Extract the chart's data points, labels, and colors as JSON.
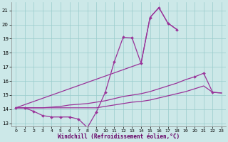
{
  "xlabel": "Windchill (Refroidissement éolien,°C)",
  "xlim": [
    -0.5,
    23.5
  ],
  "ylim": [
    12.8,
    21.6
  ],
  "yticks": [
    13,
    14,
    15,
    16,
    17,
    18,
    19,
    20,
    21
  ],
  "xticks": [
    0,
    1,
    2,
    3,
    4,
    5,
    6,
    7,
    8,
    9,
    10,
    11,
    12,
    13,
    14,
    15,
    16,
    17,
    18,
    19,
    20,
    21,
    22,
    23
  ],
  "background_color": "#cce8e8",
  "grid_color": "#99cccc",
  "line_color": "#993399",
  "line1_x": [
    0,
    1,
    2,
    3,
    4,
    5,
    6,
    7,
    8,
    9,
    10,
    11,
    12,
    13,
    14,
    15,
    16,
    17,
    18
  ],
  "line1_y": [
    14.1,
    14.1,
    13.85,
    13.55,
    13.45,
    13.45,
    13.45,
    13.3,
    12.7,
    13.8,
    15.2,
    17.35,
    19.1,
    19.05,
    17.25,
    20.5,
    21.2,
    20.1,
    19.65
  ],
  "line2_x": [
    0,
    9,
    10,
    11,
    12,
    13,
    14,
    15,
    16,
    17,
    18
  ],
  "line2_y": [
    14.1,
    13.8,
    15.2,
    17.35,
    19.1,
    19.05,
    17.25,
    20.5,
    21.2,
    20.1,
    19.65
  ],
  "line3_x": [
    0,
    1,
    2,
    3,
    4,
    5,
    6,
    7,
    8,
    9,
    10,
    11,
    12,
    13,
    14,
    15,
    16,
    17,
    18,
    19,
    20,
    21,
    22,
    23
  ],
  "line3_y": [
    14.1,
    14.1,
    14.1,
    14.1,
    14.15,
    14.2,
    14.3,
    14.35,
    14.4,
    14.5,
    14.6,
    14.75,
    14.9,
    15.0,
    15.1,
    15.25,
    15.45,
    15.65,
    15.85,
    16.1,
    16.3,
    16.55,
    15.2,
    15.15
  ],
  "line4_x": [
    0,
    1,
    2,
    3,
    4,
    5,
    6,
    7,
    8,
    9,
    10,
    11,
    12,
    13,
    14,
    15,
    16,
    17,
    18,
    19,
    20,
    21,
    22,
    23
  ],
  "line4_y": [
    14.1,
    14.1,
    14.1,
    14.1,
    14.1,
    14.1,
    14.1,
    14.1,
    14.1,
    14.1,
    14.2,
    14.3,
    14.4,
    14.5,
    14.55,
    14.65,
    14.8,
    14.95,
    15.1,
    15.25,
    15.45,
    15.65,
    15.2,
    15.15
  ]
}
